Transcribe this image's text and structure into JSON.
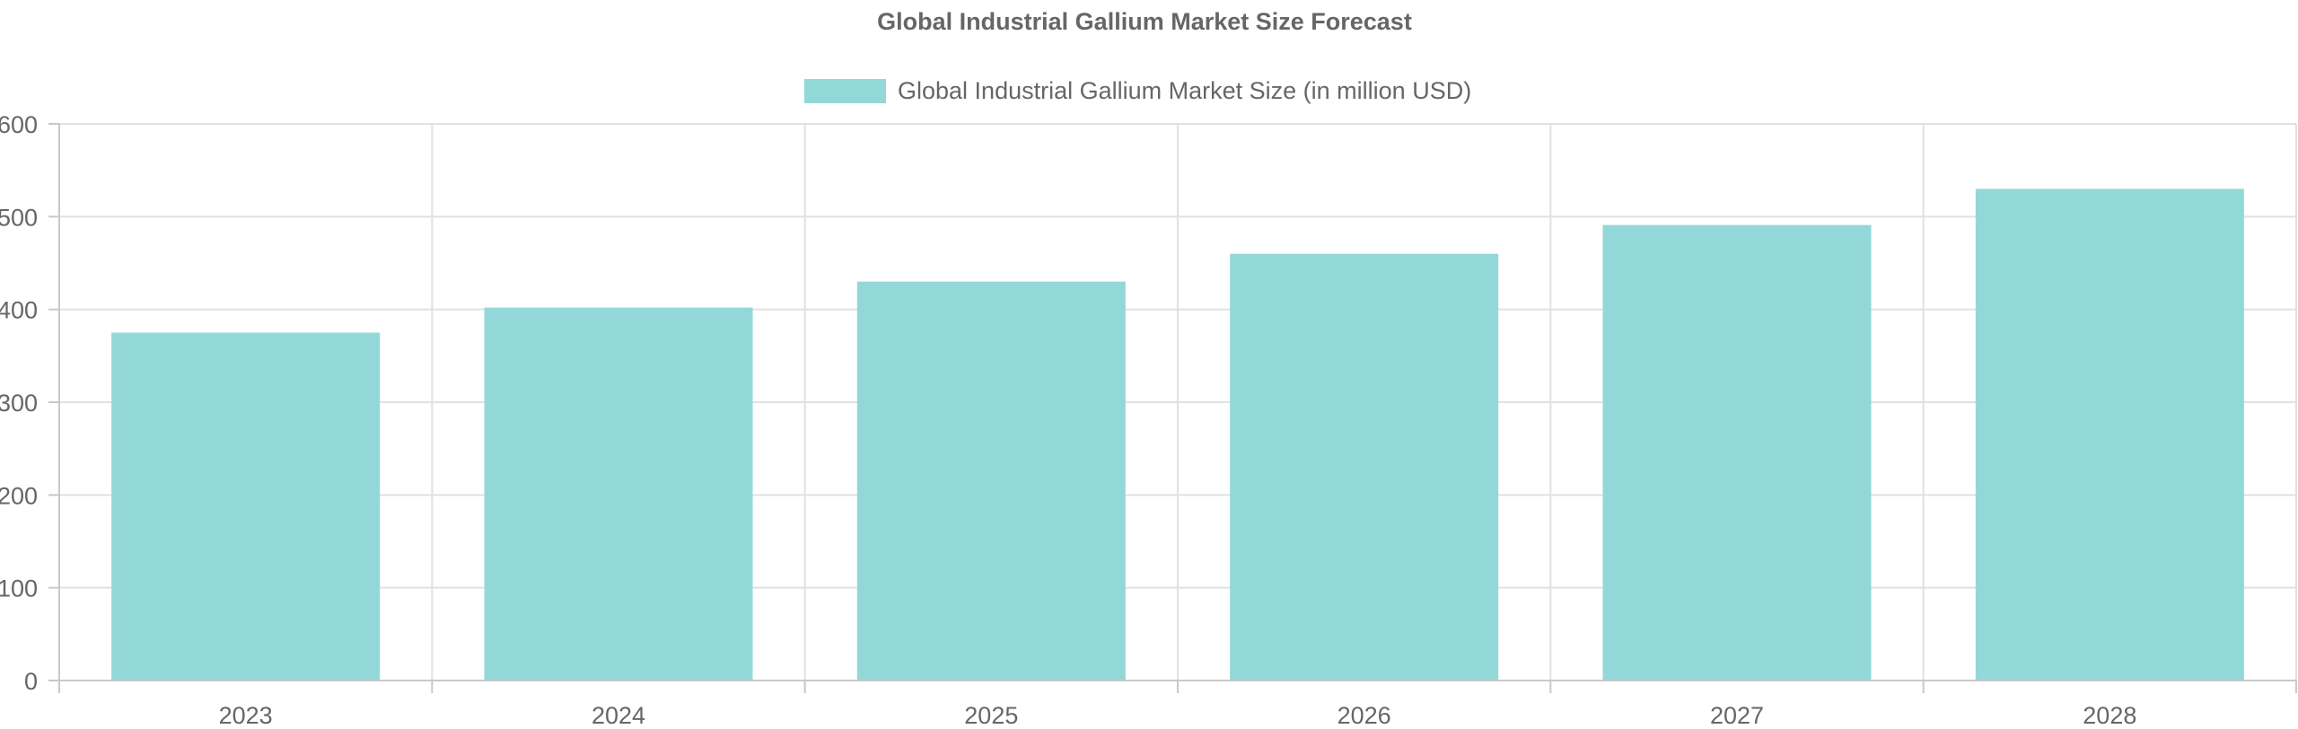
{
  "chart_data": {
    "type": "bar",
    "title": "Global Industrial Gallium Market Size Forecast",
    "categories": [
      "2023",
      "2024",
      "2025",
      "2026",
      "2027",
      "2028"
    ],
    "series": [
      {
        "name": "Global Industrial Gallium Market Size (in million USD)",
        "values": [
          375,
          402,
          430,
          460,
          491,
          530
        ],
        "color": "#93d8d9"
      }
    ],
    "xlabel": "",
    "ylabel": "",
    "ylim": [
      0,
      600
    ],
    "yticks": [
      "0",
      "100",
      "200",
      "300",
      "400",
      "500",
      "600"
    ],
    "grid": true,
    "legend_position": "top"
  }
}
